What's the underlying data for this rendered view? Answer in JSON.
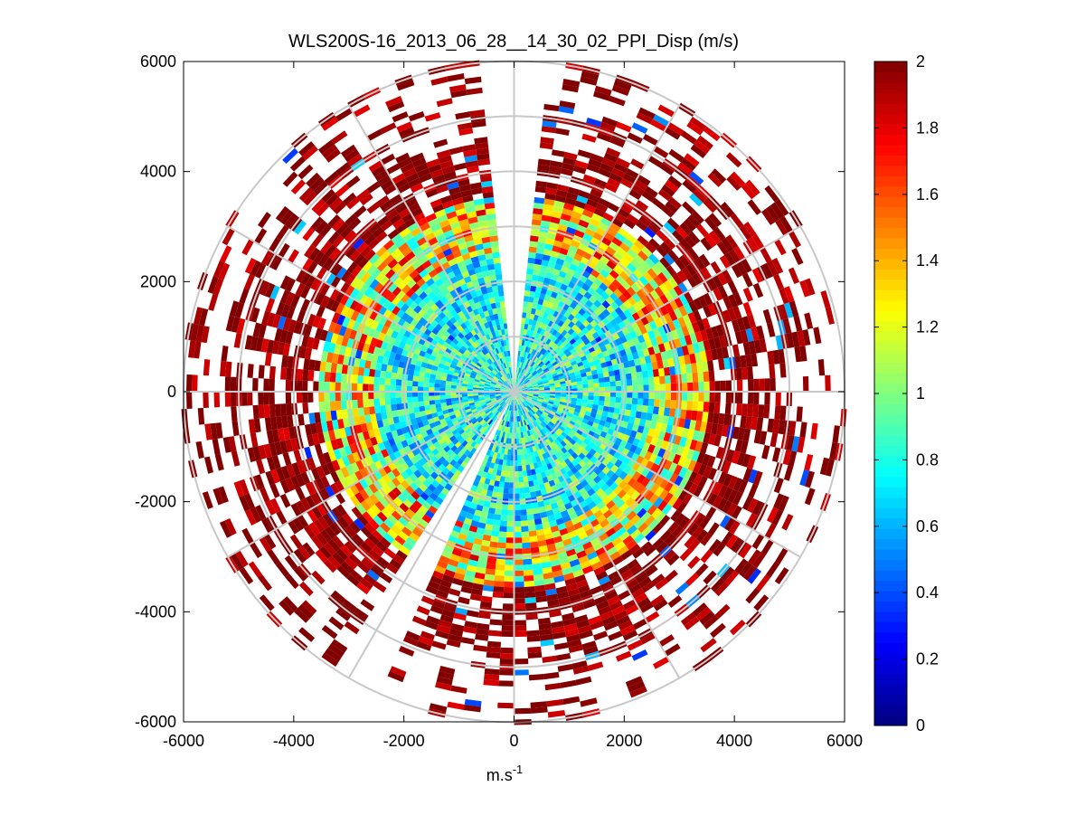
{
  "chart_data": {
    "type": "heatmap",
    "subtype": "polar-ppi",
    "title": "WLS200S-16_2013_06_28__14_30_02_PPI_Disp (m/s)",
    "xlabel": "m.s",
    "xlabel_superscript": "-1",
    "ylabel": "",
    "xlim": [
      -6000,
      6000
    ],
    "ylim": [
      -6000,
      6000
    ],
    "xticks": [
      -6000,
      -4000,
      -2000,
      0,
      2000,
      4000,
      6000
    ],
    "yticks": [
      -6000,
      -4000,
      -2000,
      0,
      2000,
      4000,
      6000
    ],
    "colorbar": {
      "min": 0,
      "max": 2,
      "ticks": [
        0,
        0.2,
        0.4,
        0.6,
        0.8,
        1,
        1.2,
        1.4,
        1.6,
        1.8,
        2
      ],
      "colormap": "jet"
    },
    "max_range": 6000,
    "range_rings": [
      1000,
      2000,
      3000,
      4000,
      5000,
      6000
    ],
    "sector_gaps_deg": [
      [
        85,
        97
      ],
      [
        237,
        247
      ]
    ],
    "description_values": {
      "inner_zone_range": [
        0,
        2500
      ],
      "inner_zone_typical_value": 0.8,
      "middle_zone_range": [
        2500,
        3500
      ],
      "middle_zone_typical_value": 1.3,
      "outer_zone_range": [
        3500,
        6000
      ],
      "outer_zone_typical_value": 2.0
    }
  },
  "colors": {
    "grid": "#c8c8c8",
    "axes": "#000000",
    "background": "#ffffff"
  }
}
